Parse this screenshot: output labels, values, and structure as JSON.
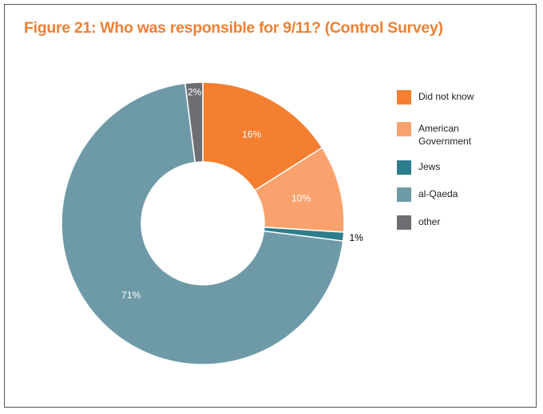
{
  "chart_data": {
    "type": "pie",
    "donut": true,
    "title": "Figure 21: Who was responsible for 9/11? (Control Survey)",
    "categories": [
      "Did not know",
      "American Government",
      "Jews",
      "al-Qaeda",
      "other"
    ],
    "values": [
      16,
      10,
      1,
      71,
      2
    ],
    "data_labels": [
      "16%",
      "10%",
      "1%",
      "71%",
      "2%"
    ],
    "colors": [
      "#F47F30",
      "#F9A26D",
      "#2E7D8C",
      "#6E9AA8",
      "#6D6E71"
    ],
    "start": "top",
    "direction": "clockwise",
    "legend_position": "right"
  }
}
